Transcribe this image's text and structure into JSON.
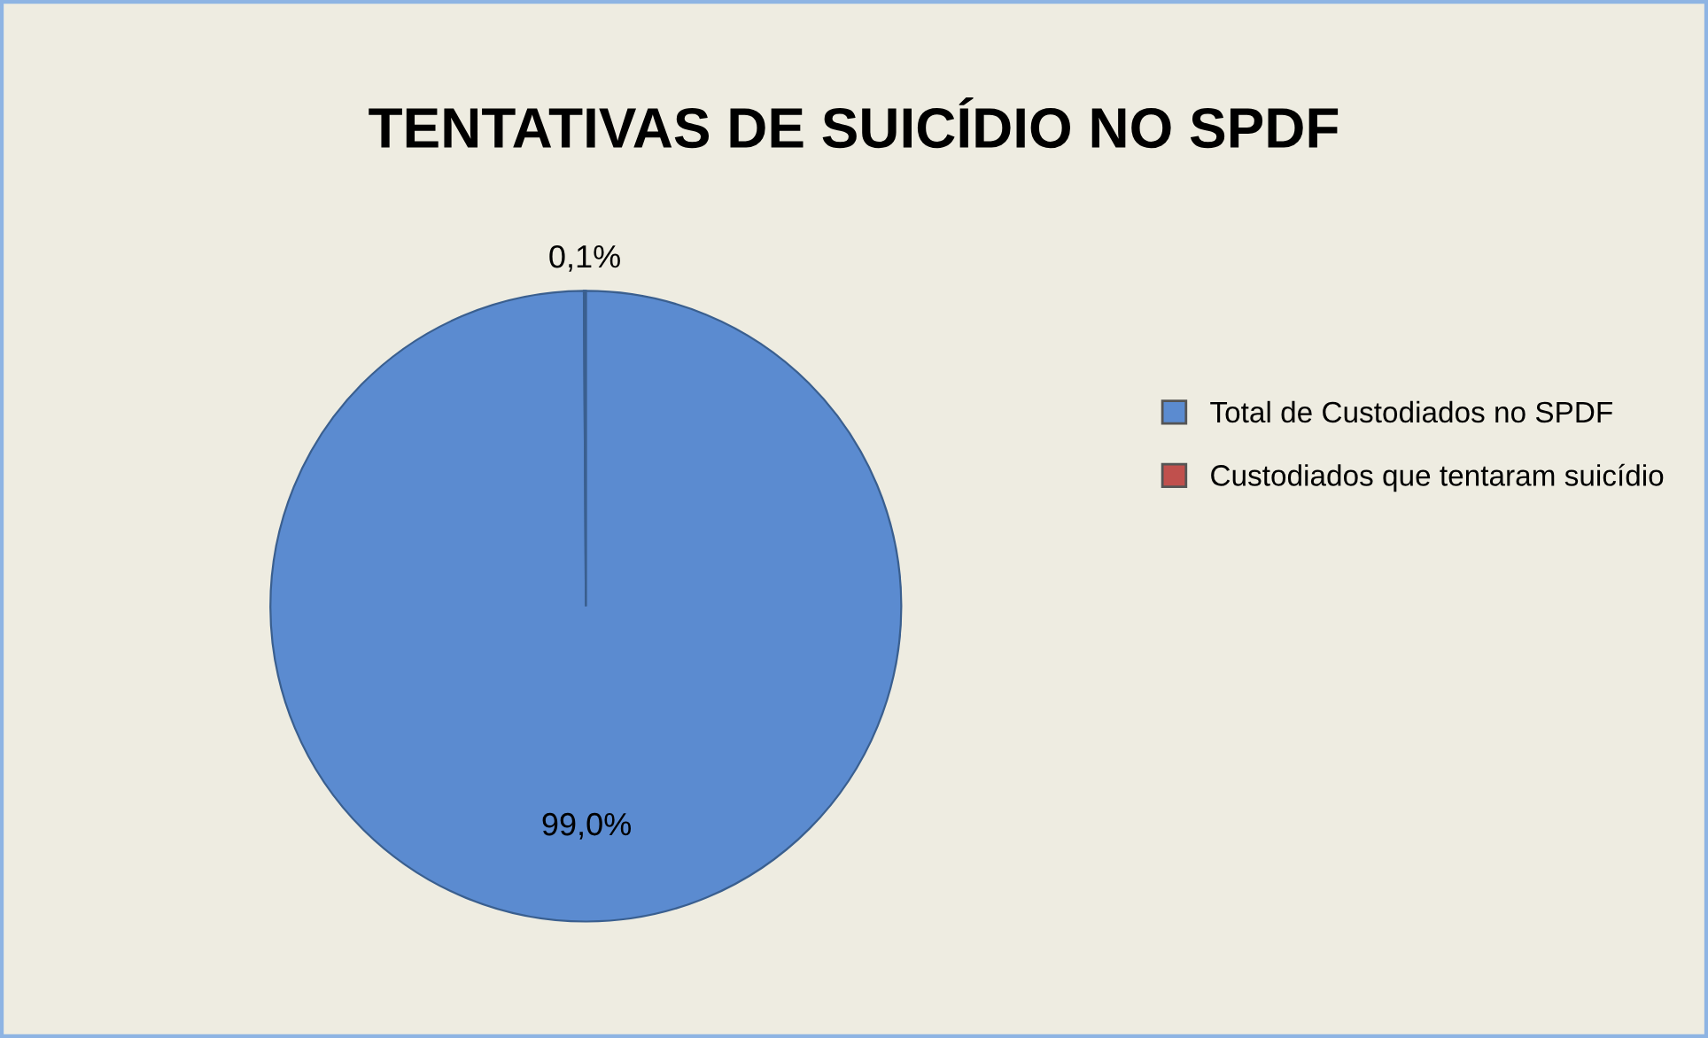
{
  "chart_data": {
    "type": "pie",
    "title": "TENTATIVAS DE SUICÍDIO NO SPDF",
    "categories": [
      "Total de Custodiados no SPDF",
      "Custodiados que tentaram suicídio"
    ],
    "values": [
      99.0,
      0.1
    ],
    "value_labels": [
      "99,0%",
      "0,1%"
    ],
    "colors": [
      "#5b8bd0",
      "#c0504d"
    ],
    "legend": "right"
  }
}
